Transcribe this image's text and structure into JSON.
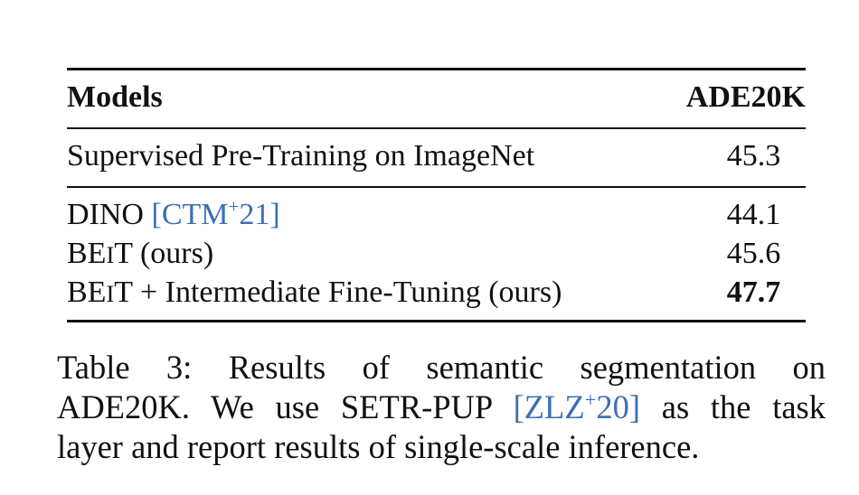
{
  "table": {
    "headers": {
      "model": "Models",
      "value": "ADE20K"
    },
    "rows": [
      {
        "model": "Supervised Pre-Training on ImageNet",
        "value": "45.3"
      },
      {
        "model_prefix": "DINO ",
        "citation": "CTM",
        "citation_sup": "+",
        "citation_year": "21",
        "value": "44.1"
      },
      {
        "model_be": "BE",
        "model_i": "I",
        "model_t": "T",
        "model_rest": " (ours)",
        "value": "45.6"
      },
      {
        "model_be": "BE",
        "model_i": "I",
        "model_t": "T",
        "model_rest": " + Intermediate Fine-Tuning (ours)",
        "value": "47.7"
      }
    ]
  },
  "caption": {
    "line1": "Table 3:  Results of semantic segmentation on",
    "line2_a": "ADE20K. We use SETR-PUP ",
    "line2_cite": "ZLZ",
    "line2_cite_sup": "+",
    "line2_cite_year": "20",
    "line2_b": " as the task",
    "line3": "layer and report results of single-scale inference."
  },
  "colors": {
    "citation": "#3d6fb4",
    "text": "#111111"
  }
}
